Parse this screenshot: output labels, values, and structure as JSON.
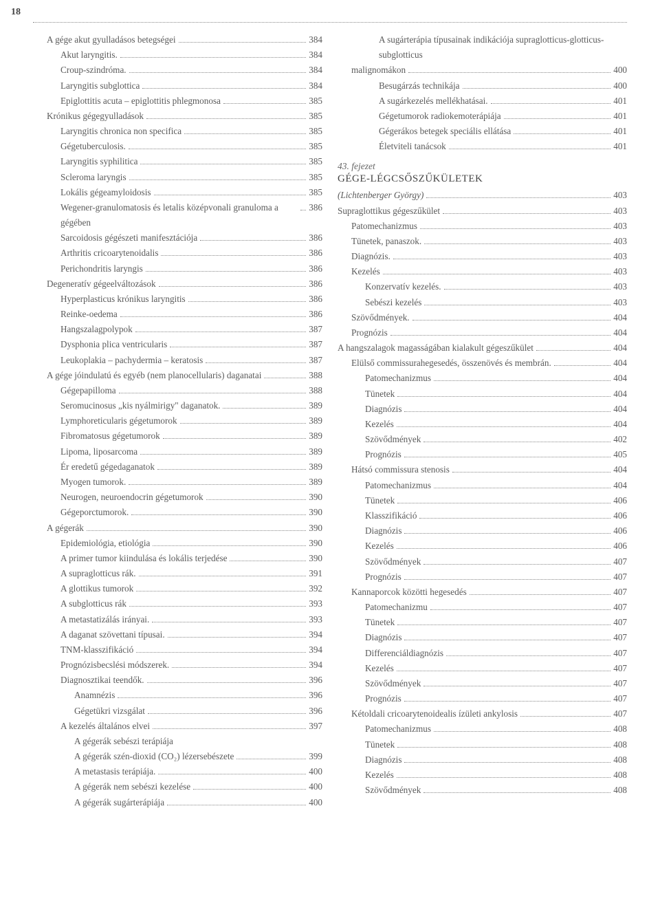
{
  "page_number": "18",
  "left_col": [
    {
      "lvl": 1,
      "label": "A gége akut gyulladásos betegségei",
      "pg": "384"
    },
    {
      "lvl": 2,
      "label": "Akut laryngitis.",
      "pg": "384"
    },
    {
      "lvl": 2,
      "label": "Croup-szindróma.",
      "pg": "384"
    },
    {
      "lvl": 2,
      "label": "Laryngitis subglottica",
      "pg": "384"
    },
    {
      "lvl": 2,
      "label": "Epiglottitis acuta – epiglottitis phlegmonosa",
      "pg": "385"
    },
    {
      "lvl": 1,
      "label": "Krónikus gégegyulladások",
      "pg": "385"
    },
    {
      "lvl": 2,
      "label": "Laryngitis chronica non specifica",
      "pg": "385"
    },
    {
      "lvl": 2,
      "label": "Gégetuberculosis.",
      "pg": "385"
    },
    {
      "lvl": 2,
      "label": "Laryngitis syphilitica",
      "pg": "385"
    },
    {
      "lvl": 2,
      "label": "Scleroma laryngis",
      "pg": "385"
    },
    {
      "lvl": 2,
      "label": "Lokális gégeamyloidosis",
      "pg": "385"
    },
    {
      "lvl": 2,
      "label": "Wegener-granulomatosis és letalis középvonali granuloma a gégében",
      "pg": "386"
    },
    {
      "lvl": 2,
      "label": "Sarcoidosis gégészeti manifesztációja",
      "pg": "386"
    },
    {
      "lvl": 2,
      "label": "Arthritis cricoarytenoidalis",
      "pg": "386"
    },
    {
      "lvl": 2,
      "label": "Perichondritis laryngis",
      "pg": "386"
    },
    {
      "lvl": 1,
      "label": "Degeneratív gégeelváltozások",
      "pg": "386"
    },
    {
      "lvl": 2,
      "label": "Hyperplasticus krónikus laryngitis",
      "pg": "386"
    },
    {
      "lvl": 2,
      "label": "Reinke-oedema",
      "pg": "386"
    },
    {
      "lvl": 2,
      "label": "Hangszalagpolypok",
      "pg": "387"
    },
    {
      "lvl": 2,
      "label": "Dysphonia plica ventricularis",
      "pg": "387"
    },
    {
      "lvl": 2,
      "label": "Leukoplakia – pachydermia – keratosis",
      "pg": "387"
    },
    {
      "lvl": 1,
      "label": "A gége jóindulatú és egyéb (nem planocellularis) daganatai",
      "pg": "388"
    },
    {
      "lvl": 2,
      "label": "Gégepapilloma",
      "pg": "388"
    },
    {
      "lvl": 2,
      "label": "Seromucinosus „kis nyálmirigy\" daganatok.",
      "pg": "389"
    },
    {
      "lvl": 2,
      "label": "Lymphoreticularis gégetumorok",
      "pg": "389"
    },
    {
      "lvl": 2,
      "label": "Fibromatosus gégetumorok",
      "pg": "389"
    },
    {
      "lvl": 2,
      "label": "Lipoma, liposarcoma",
      "pg": "389"
    },
    {
      "lvl": 2,
      "label": "Ér eredetű gégedaganatok",
      "pg": "389"
    },
    {
      "lvl": 2,
      "label": "Myogen tumorok.",
      "pg": "389"
    },
    {
      "lvl": 2,
      "label": "Neurogen, neuroendocrin gégetumorok",
      "pg": "390"
    },
    {
      "lvl": 2,
      "label": "Gégeporctumorok.",
      "pg": "390"
    },
    {
      "lvl": 1,
      "label": "A gégerák",
      "pg": "390"
    },
    {
      "lvl": 2,
      "label": "Epidemiológia, etiológia",
      "pg": "390"
    },
    {
      "lvl": 2,
      "label": "A primer tumor kiindulása és lokális terjedése",
      "pg": "390"
    },
    {
      "lvl": 2,
      "label": "A supraglotticus rák.",
      "pg": "391"
    },
    {
      "lvl": 2,
      "label": "A glottikus tumorok",
      "pg": "392"
    },
    {
      "lvl": 2,
      "label": "A subglotticus rák",
      "pg": "393"
    },
    {
      "lvl": 2,
      "label": "A metastatizálás irányai.",
      "pg": "393"
    },
    {
      "lvl": 2,
      "label": "A daganat szövettani típusai.",
      "pg": "394"
    },
    {
      "lvl": 2,
      "label": "TNM-klasszifikáció",
      "pg": "394"
    },
    {
      "lvl": 2,
      "label": "Prognózisbecslési módszerek.",
      "pg": "394"
    },
    {
      "lvl": 2,
      "label": "Diagnosztikai teendők.",
      "pg": "396"
    },
    {
      "lvl": 3,
      "label": "Anamnézis",
      "pg": "396"
    },
    {
      "lvl": 3,
      "label": "Gégetükri vizsgálat",
      "pg": "396"
    },
    {
      "lvl": 2,
      "label": "A kezelés általános elvei",
      "pg": "397"
    },
    {
      "lvl": 3,
      "label": "A gégerák sebészi terápiája",
      "noline": true
    },
    {
      "lvl": 3,
      "label": "A gégerák szén-dioxid (CO₂) lézersebészete",
      "pg": "399"
    },
    {
      "lvl": 3,
      "label": "A metastasis terápiája.",
      "pg": "400"
    },
    {
      "lvl": 3,
      "label": "A gégerák nem sebészi kezelése",
      "pg": "400"
    },
    {
      "lvl": 3,
      "label": "A gégerák sugárterápiája",
      "pg": "400"
    }
  ],
  "right_col_top": [
    {
      "lvl": 3,
      "label": "A sugárterápia típusainak indikációja supraglotticus-glotticus-subglotticus malignomákon",
      "pg": "400",
      "outdent": true
    },
    {
      "lvl": 3,
      "label": "Besugárzás technikája",
      "pg": "400"
    },
    {
      "lvl": 3,
      "label": "A sugárkezelés mellékhatásai.",
      "pg": "401"
    },
    {
      "lvl": 3,
      "label": "Gégetumorok radiokemoterápiája",
      "pg": "401"
    },
    {
      "lvl": 3,
      "label": "Gégerákos betegek speciális ellátása",
      "pg": "401"
    },
    {
      "lvl": 3,
      "label": "Életviteli tanácsok",
      "pg": "401"
    }
  ],
  "chapter_label": "43. fejezet",
  "chapter_title": "GÉGE-LÉGCSŐSZŰKÜLETEK",
  "right_col_rest": [
    {
      "lvl": 0,
      "label": "(Lichtenberger György)",
      "pg": "403",
      "italic": true
    },
    {
      "lvl": 0,
      "label": "Supraglottikus gégeszűkület",
      "pg": "403"
    },
    {
      "lvl": 1,
      "label": "Patomechanizmus",
      "pg": "403"
    },
    {
      "lvl": 1,
      "label": "Tünetek, panaszok.",
      "pg": "403"
    },
    {
      "lvl": 1,
      "label": "Diagnózis.",
      "pg": "403"
    },
    {
      "lvl": 1,
      "label": "Kezelés",
      "pg": "403"
    },
    {
      "lvl": 2,
      "label": "Konzervatív kezelés.",
      "pg": "403"
    },
    {
      "lvl": 2,
      "label": "Sebészi kezelés",
      "pg": "403"
    },
    {
      "lvl": 1,
      "label": "Szövődmények.",
      "pg": "404"
    },
    {
      "lvl": 1,
      "label": "Prognózis",
      "pg": "404"
    },
    {
      "lvl": 0,
      "label": "A hangszalagok magasságában kialakult gégeszűkület",
      "pg": "404"
    },
    {
      "lvl": 1,
      "label": "Elülső commissurahegesedés, összenövés és membrán.",
      "pg": "404"
    },
    {
      "lvl": 2,
      "label": "Patomechanizmus",
      "pg": "404"
    },
    {
      "lvl": 2,
      "label": "Tünetek",
      "pg": "404"
    },
    {
      "lvl": 2,
      "label": "Diagnózis",
      "pg": "404"
    },
    {
      "lvl": 2,
      "label": "Kezelés",
      "pg": "404"
    },
    {
      "lvl": 2,
      "label": "Szövődmények",
      "pg": "402"
    },
    {
      "lvl": 2,
      "label": "Prognózis",
      "pg": "405"
    },
    {
      "lvl": 1,
      "label": "Hátsó commissura stenosis",
      "pg": "404"
    },
    {
      "lvl": 2,
      "label": "Patomechanizmus",
      "pg": "404"
    },
    {
      "lvl": 2,
      "label": "Tünetek",
      "pg": "406"
    },
    {
      "lvl": 2,
      "label": "Klasszifikáció",
      "pg": "406"
    },
    {
      "lvl": 2,
      "label": "Diagnózis",
      "pg": "406"
    },
    {
      "lvl": 2,
      "label": "Kezelés",
      "pg": "406"
    },
    {
      "lvl": 2,
      "label": "Szövődmények",
      "pg": "407"
    },
    {
      "lvl": 2,
      "label": "Prognózis",
      "pg": "407"
    },
    {
      "lvl": 1,
      "label": "Kannaporcok közötti hegesedés",
      "pg": "407"
    },
    {
      "lvl": 2,
      "label": "Patomechanizmu",
      "pg": "407"
    },
    {
      "lvl": 2,
      "label": "Tünetek",
      "pg": "407"
    },
    {
      "lvl": 2,
      "label": "Diagnózis",
      "pg": "407"
    },
    {
      "lvl": 2,
      "label": "Differenciáldiagnózis",
      "pg": "407"
    },
    {
      "lvl": 2,
      "label": "Kezelés",
      "pg": "407"
    },
    {
      "lvl": 2,
      "label": "Szövődmények",
      "pg": "407"
    },
    {
      "lvl": 2,
      "label": "Prognózis",
      "pg": "407"
    },
    {
      "lvl": 1,
      "label": "Kétoldali cricoarytenoidealis ízületi ankylosis",
      "pg": "407"
    },
    {
      "lvl": 2,
      "label": "Patomechanizmus",
      "pg": "408"
    },
    {
      "lvl": 2,
      "label": "Tünetek",
      "pg": "408"
    },
    {
      "lvl": 2,
      "label": "Diagnózis",
      "pg": "408"
    },
    {
      "lvl": 2,
      "label": "Kezelés",
      "pg": "408"
    },
    {
      "lvl": 2,
      "label": "Szövődmények",
      "pg": "408"
    }
  ]
}
